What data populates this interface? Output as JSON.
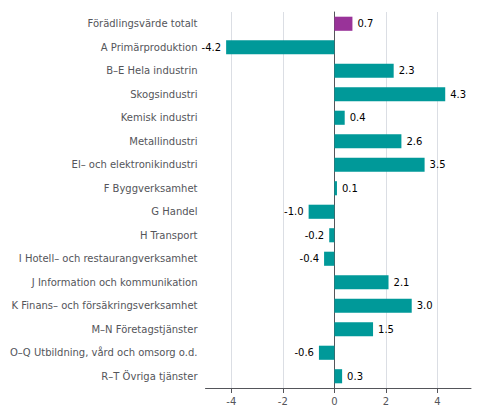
{
  "chart_data": {
    "type": "bar",
    "orientation": "horizontal",
    "categories": [
      "R–T Övriga tjänster",
      "O–Q Utbildning, vård och omsorg o.d.",
      "M–N Företagstjänster",
      "K Finans– och försäkringsverksamhet",
      "J Information och kommunikation",
      "I Hotell– och restaurangverksamhet",
      "H Transport",
      "G Handel",
      "F Byggverksamhet",
      "El– och elektronikindustri",
      "Metallindustri",
      "Kemisk industri",
      "Skogsindustri",
      "B–E Hela industrin",
      "A Primärproduktion",
      "Förädlingsvärde totalt"
    ],
    "values": [
      0.3,
      -0.6,
      1.5,
      3.0,
      2.1,
      -0.4,
      -0.2,
      -1.0,
      0.1,
      3.5,
      2.6,
      0.4,
      4.3,
      2.3,
      -4.2,
      0.7
    ],
    "value_labels": [
      "0.3",
      "-0.6",
      "1.5",
      "3.0",
      "2.1",
      "-0.4",
      "-0.2",
      "-1.0",
      "0.1",
      "3.5",
      "2.6",
      "0.4",
      "4.3",
      "2.3",
      "-4.2",
      "0.7"
    ],
    "colors": [
      "#009999",
      "#009999",
      "#009999",
      "#009999",
      "#009999",
      "#009999",
      "#009999",
      "#009999",
      "#009999",
      "#009999",
      "#009999",
      "#009999",
      "#009999",
      "#009999",
      "#009999",
      "#993399"
    ],
    "xlim": [
      -5.0,
      5.3
    ],
    "xticks": [
      -4,
      -2,
      0,
      2,
      4
    ],
    "grid": true,
    "data_labels": true
  }
}
